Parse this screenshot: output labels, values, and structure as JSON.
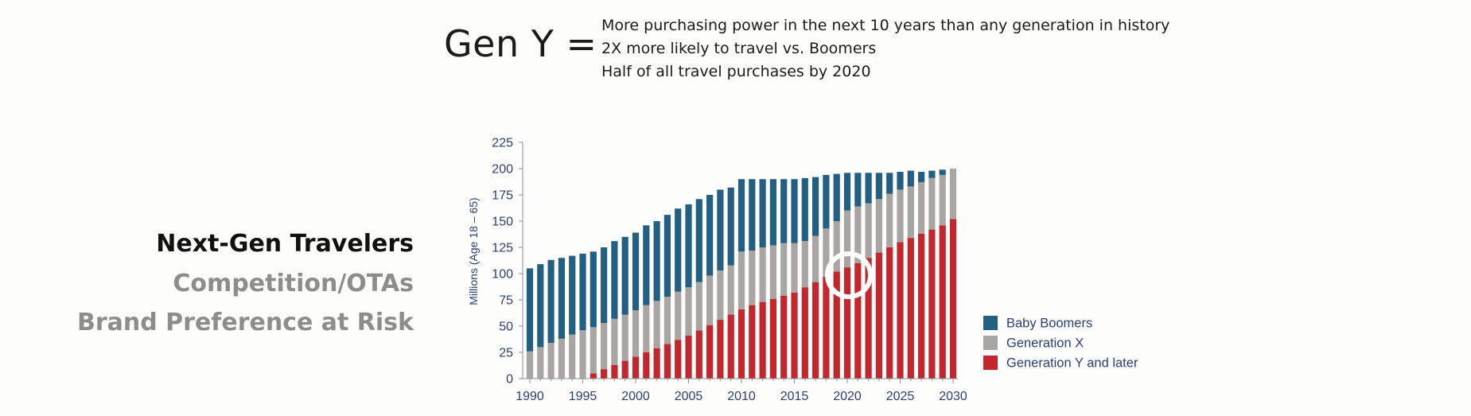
{
  "header": {
    "headline": "Gen Y =",
    "bullets": [
      "More purchasing power in the next 10 years than any generation in history",
      "2X more likely to travel vs. Boomers",
      "Half of all travel purchases by 2020"
    ]
  },
  "sidebar": {
    "topics": [
      {
        "label": "Next-Gen Travelers",
        "active": true
      },
      {
        "label": "Competition/OTAs",
        "active": false
      },
      {
        "label": "Brand Preference at Risk",
        "active": false
      }
    ]
  },
  "chart_data": {
    "type": "bar",
    "stacked": true,
    "title": "",
    "xlabel": "",
    "ylabel": "Millions (Age 18 – 65)",
    "ylim": [
      0,
      225
    ],
    "yticks": [
      0,
      25,
      50,
      75,
      100,
      125,
      150,
      175,
      200,
      225
    ],
    "xticks": [
      1990,
      1995,
      2000,
      2005,
      2010,
      2015,
      2020,
      2025,
      2030
    ],
    "grid": false,
    "legend_position": "bottom-right",
    "highlight_year": 2020,
    "categories": [
      1990,
      1991,
      1992,
      1993,
      1994,
      1995,
      1996,
      1997,
      1998,
      1999,
      2000,
      2001,
      2002,
      2003,
      2004,
      2005,
      2006,
      2007,
      2008,
      2009,
      2010,
      2011,
      2012,
      2013,
      2014,
      2015,
      2016,
      2017,
      2018,
      2019,
      2020,
      2021,
      2022,
      2023,
      2024,
      2025,
      2026,
      2027,
      2028,
      2029,
      2030
    ],
    "series": [
      {
        "name": "Generation Y and later",
        "color": "#c1272d",
        "values": [
          0,
          0,
          0,
          0,
          0,
          0,
          5,
          9,
          13,
          17,
          21,
          25,
          29,
          33,
          37,
          41,
          46,
          51,
          56,
          61,
          66,
          70,
          73,
          76,
          79,
          82,
          87,
          92,
          97,
          102,
          106,
          110,
          115,
          120,
          125,
          130,
          134,
          138,
          142,
          146,
          152
        ]
      },
      {
        "name": "Generation X",
        "color": "#a8a6a2",
        "values": [
          26,
          30,
          34,
          38,
          42,
          46,
          44,
          44,
          44,
          44,
          44,
          45,
          45,
          45,
          46,
          46,
          46,
          47,
          47,
          47,
          55,
          52,
          52,
          51,
          50,
          47,
          44,
          44,
          46,
          48,
          54,
          54,
          52,
          51,
          51,
          50,
          49,
          49,
          49,
          48,
          48
        ]
      },
      {
        "name": "Baby Boomers",
        "color": "#235f82",
        "values": [
          79,
          79,
          79,
          77,
          75,
          73,
          72,
          72,
          74,
          74,
          74,
          76,
          76,
          78,
          79,
          79,
          79,
          77,
          77,
          74,
          69,
          68,
          65,
          63,
          61,
          61,
          60,
          56,
          51,
          45,
          36,
          32,
          29,
          25,
          20,
          17,
          15,
          10,
          7,
          5,
          0
        ]
      }
    ]
  }
}
